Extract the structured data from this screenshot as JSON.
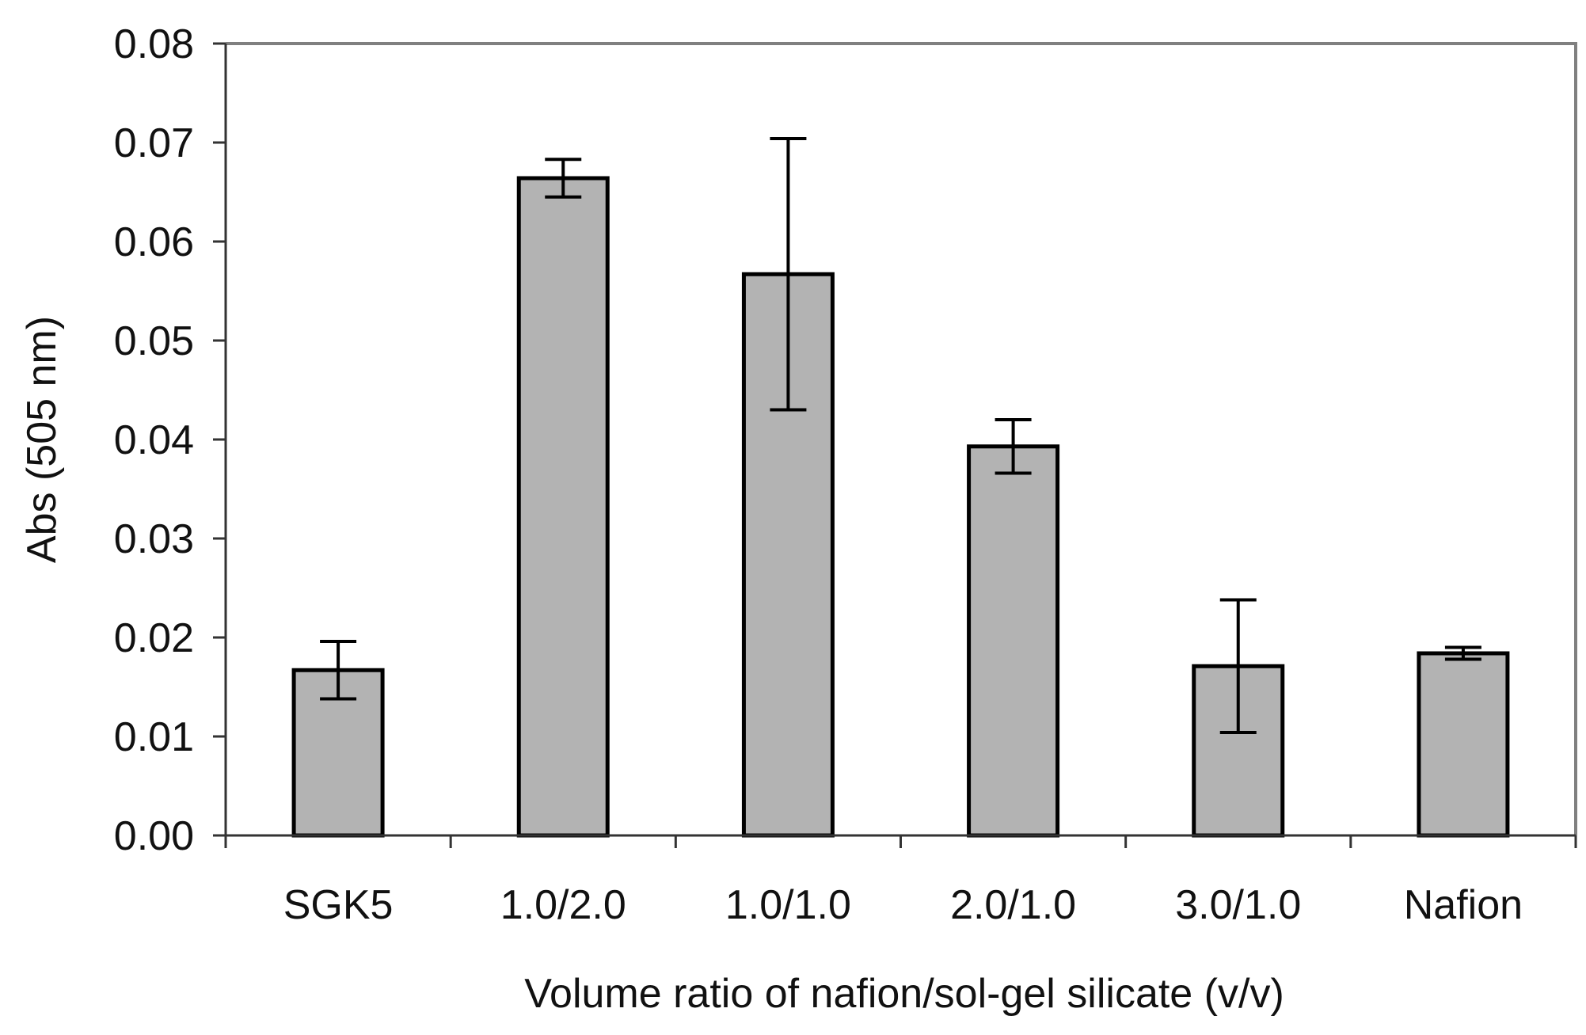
{
  "chart_data": {
    "type": "bar",
    "title": "",
    "xlabel": "Volume ratio of nafion/sol-gel silicate (v/v)",
    "ylabel": "Abs (505 nm)",
    "ylim": [
      0,
      0.08
    ],
    "yticks": [
      "0.00",
      "0.01",
      "0.02",
      "0.03",
      "0.04",
      "0.05",
      "0.06",
      "0.07",
      "0.08"
    ],
    "ytick_values": [
      0,
      0.01,
      0.02,
      0.03,
      0.04,
      0.05,
      0.06,
      0.07,
      0.08
    ],
    "categories": [
      "SGK5",
      "1.0/2.0",
      "1.0/1.0",
      "2.0/1.0",
      "3.0/1.0",
      "Nafion"
    ],
    "values": [
      0.0167,
      0.0664,
      0.0567,
      0.0393,
      0.0171,
      0.0184
    ],
    "errors": [
      0.0029,
      0.0019,
      0.0137,
      0.0027,
      0.0067,
      0.0006
    ],
    "grid": false,
    "legend": "none",
    "colors": {
      "bar_fill": "#b3b3b3",
      "bar_stroke": "#000000",
      "axis": "#333333",
      "frame": "#808080",
      "error_bar": "#000000"
    }
  }
}
